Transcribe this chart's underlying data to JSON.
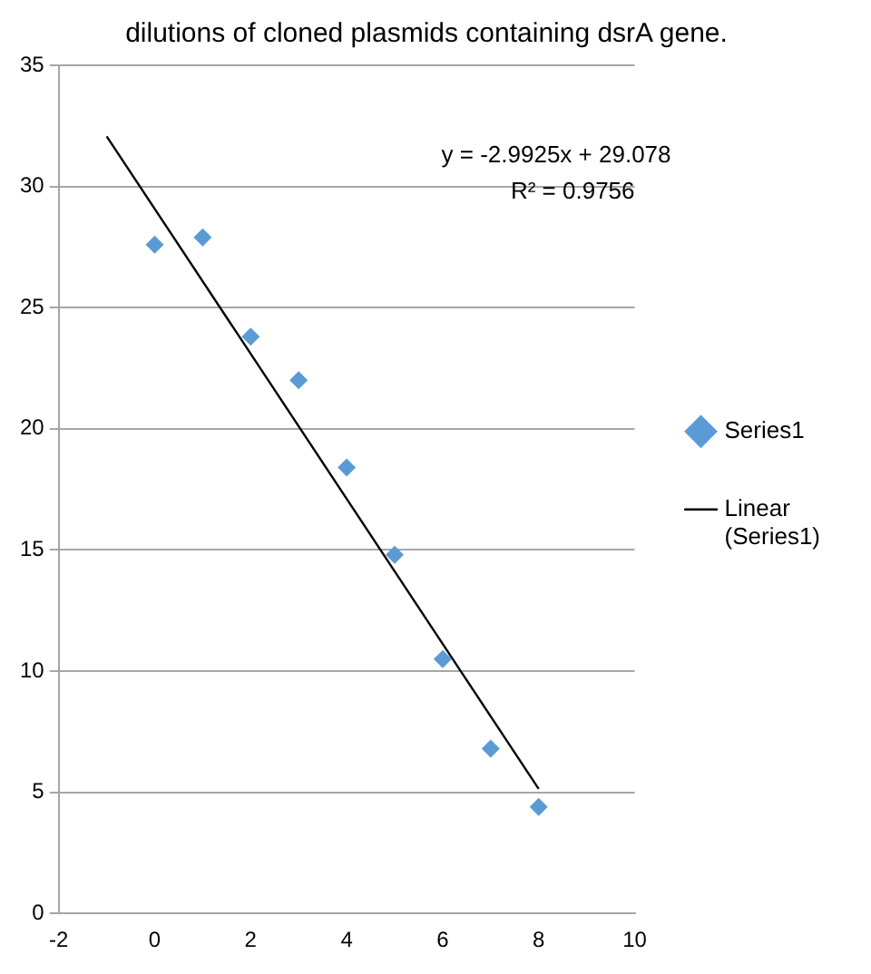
{
  "chart_data": {
    "type": "scatter",
    "title": "dilutions of cloned plasmids containing dsrA gene.",
    "series": [
      {
        "name": "Series1",
        "color": "#5b9bd5",
        "x": [
          0,
          1,
          2,
          3,
          4,
          5,
          6,
          7,
          8
        ],
        "values": [
          27.6,
          27.9,
          23.8,
          22.0,
          18.4,
          14.8,
          10.5,
          6.8,
          4.4
        ],
        "marker": "diamond"
      },
      {
        "name": "Linear (Series1)",
        "type": "line",
        "color": "#000000",
        "x": [
          -1,
          8
        ],
        "values": [
          32.07,
          5.14
        ],
        "marker": "none",
        "line_style": "solid"
      }
    ],
    "xlim": [
      -2,
      10
    ],
    "xticks": [
      -2,
      0,
      2,
      4,
      6,
      8,
      10
    ],
    "ylim": [
      0,
      35
    ],
    "yticks": [
      0,
      5,
      10,
      15,
      20,
      25,
      30,
      35
    ],
    "grid": "y",
    "legend": "right",
    "annotations": [
      "y = -2.9925x + 29.078",
      "R² = 0.9756"
    ]
  }
}
